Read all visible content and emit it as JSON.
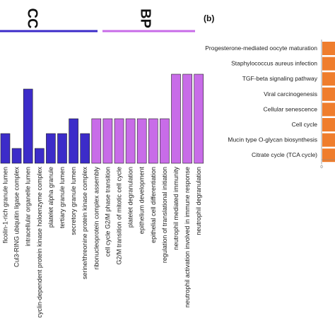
{
  "chart_data": [
    {
      "panel": "a",
      "type": "bar",
      "groups": [
        {
          "label": "CC",
          "color": "#3c2cc9",
          "categories": [
            "ficolin-1-rich granule lumen",
            "Cul3-RING ubiquitin ligase complex",
            "intracellular organelle lumen",
            "cyclin-dependent protein kinase holoenzyme complex",
            "platelet alpha granule",
            "tertiary granule lumen",
            "secretory granule lumen",
            "serine/threonine protein kinase complex"
          ],
          "values": [
            2,
            1,
            5,
            1,
            2,
            2,
            3,
            2
          ]
        },
        {
          "label": "BP",
          "color": "#c86ce8",
          "categories": [
            "ribonucleoprotein complex assembly",
            "cell cycle G2/M phase transition",
            "G2/M transition of mitotic cell cycle",
            "platelet degranulation",
            "epithelium development",
            "epithelial cell differentiation",
            "regulation of translational initiation",
            "neutrophil mediated immunity",
            "neutrophil activation involved in immune response",
            "neutrophil degranulation"
          ],
          "values": [
            3,
            3,
            3,
            3,
            3,
            3,
            3,
            6,
            6,
            6
          ]
        }
      ],
      "title": "",
      "xlabel": "",
      "ylabel": ""
    },
    {
      "panel": "b",
      "panel_label": "(b)",
      "type": "bar",
      "orientation": "horizontal",
      "categories": [
        "Progesterone-mediated oocyte maturation",
        "Staphylococcus aureus infection",
        "TGF-beta signaling pathway",
        "Viral carcinogenesis",
        "Cellular senescence",
        "Cell cycle",
        "Mucin type O-glycan biosynthesis",
        "Citrate cycle (TCA cycle)"
      ],
      "values": [
        1,
        1,
        1,
        1,
        1,
        1,
        1,
        1
      ],
      "color": "#ef7d2d",
      "x_tick_labels": [
        "0"
      ]
    }
  ]
}
